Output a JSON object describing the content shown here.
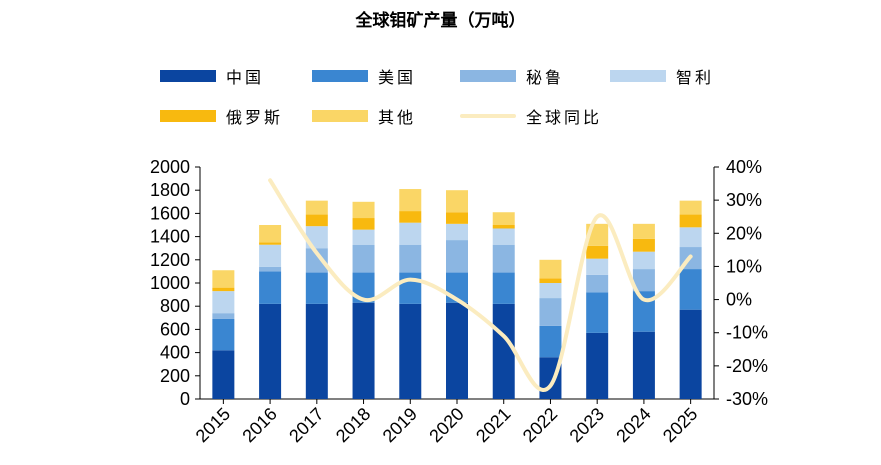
{
  "chart_data": {
    "type": "bar",
    "title": "全球钼矿产量（万吨）",
    "categories": [
      "2015",
      "2016",
      "2017",
      "2018",
      "2019",
      "2020",
      "2021",
      "2022",
      "2023",
      "2024",
      "2025"
    ],
    "series": [
      {
        "name": "中国",
        "color": "#0b45a0",
        "values": [
          420,
          820,
          820,
          830,
          820,
          830,
          820,
          360,
          570,
          580,
          770
        ]
      },
      {
        "name": "美国",
        "color": "#3a86d1",
        "values": [
          270,
          280,
          270,
          260,
          270,
          260,
          270,
          270,
          350,
          350,
          350
        ]
      },
      {
        "name": "秘鲁",
        "color": "#8bb6e2",
        "values": [
          50,
          40,
          210,
          240,
          240,
          280,
          240,
          240,
          150,
          190,
          190
        ]
      },
      {
        "name": "智利",
        "color": "#bcd6ef",
        "values": [
          190,
          190,
          190,
          130,
          190,
          140,
          140,
          130,
          140,
          150,
          170
        ]
      },
      {
        "name": "俄罗斯",
        "color": "#f8b90f",
        "values": [
          30,
          20,
          100,
          100,
          100,
          100,
          30,
          40,
          110,
          110,
          110
        ]
      },
      {
        "name": "其他",
        "color": "#fad666",
        "values": [
          150,
          150,
          120,
          140,
          190,
          190,
          110,
          160,
          190,
          130,
          120
        ]
      }
    ],
    "line_series": {
      "name": "全球同比",
      "color": "#fbecc0",
      "categories": [
        "2016",
        "2017",
        "2018",
        "2019",
        "2020",
        "2021",
        "2022",
        "2023",
        "2024",
        "2025"
      ],
      "values": [
        36,
        14,
        0,
        6,
        0,
        -11,
        -26,
        25,
        0,
        13
      ]
    },
    "y_left": {
      "min": 0,
      "max": 2000,
      "ticks": [
        "0",
        "200",
        "400",
        "600",
        "800",
        "1000",
        "1200",
        "1400",
        "1600",
        "1800",
        "2000"
      ]
    },
    "y_right": {
      "min": -30,
      "max": 40,
      "ticks": [
        "-30%",
        "-20%",
        "-10%",
        "0%",
        "10%",
        "20%",
        "30%",
        "40%"
      ]
    },
    "legend_position": "top",
    "grid": false
  }
}
